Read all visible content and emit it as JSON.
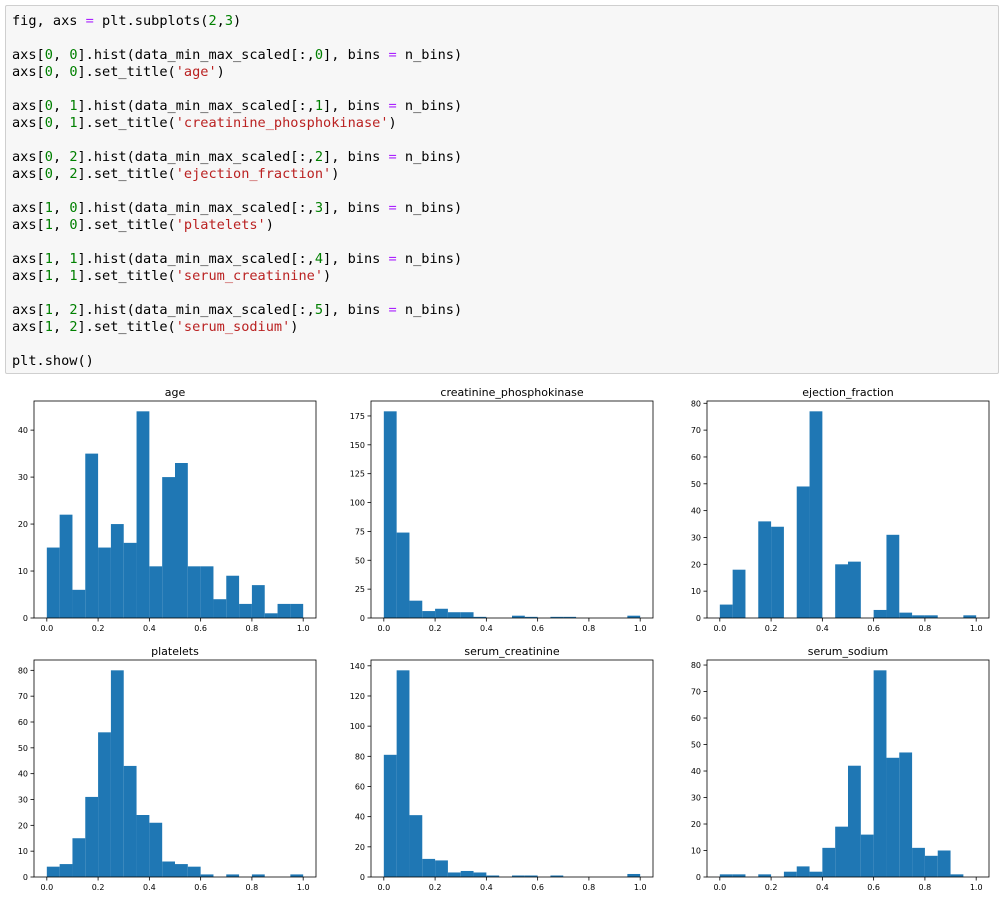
{
  "code": {
    "lines": [
      [
        {
          "t": "fig, axs ",
          "c": "kw"
        },
        {
          "t": "=",
          "c": "op"
        },
        {
          "t": " plt.subplots(",
          "c": "kw"
        },
        {
          "t": "2",
          "c": "num"
        },
        {
          "t": ",",
          "c": "kw"
        },
        {
          "t": "3",
          "c": "num"
        },
        {
          "t": ")",
          "c": "kw"
        }
      ],
      [],
      [
        {
          "t": "axs[",
          "c": "kw"
        },
        {
          "t": "0",
          "c": "num"
        },
        {
          "t": ", ",
          "c": "kw"
        },
        {
          "t": "0",
          "c": "num"
        },
        {
          "t": "].hist(data_min_max_scaled[:,",
          "c": "kw"
        },
        {
          "t": "0",
          "c": "num"
        },
        {
          "t": "], bins ",
          "c": "kw"
        },
        {
          "t": "=",
          "c": "op"
        },
        {
          "t": " n_bins)",
          "c": "kw"
        }
      ],
      [
        {
          "t": "axs[",
          "c": "kw"
        },
        {
          "t": "0",
          "c": "num"
        },
        {
          "t": ", ",
          "c": "kw"
        },
        {
          "t": "0",
          "c": "num"
        },
        {
          "t": "].set_title(",
          "c": "kw"
        },
        {
          "t": "'age'",
          "c": "str"
        },
        {
          "t": ")",
          "c": "kw"
        }
      ],
      [],
      [
        {
          "t": "axs[",
          "c": "kw"
        },
        {
          "t": "0",
          "c": "num"
        },
        {
          "t": ", ",
          "c": "kw"
        },
        {
          "t": "1",
          "c": "num"
        },
        {
          "t": "].hist(data_min_max_scaled[:,",
          "c": "kw"
        },
        {
          "t": "1",
          "c": "num"
        },
        {
          "t": "], bins ",
          "c": "kw"
        },
        {
          "t": "=",
          "c": "op"
        },
        {
          "t": " n_bins)",
          "c": "kw"
        }
      ],
      [
        {
          "t": "axs[",
          "c": "kw"
        },
        {
          "t": "0",
          "c": "num"
        },
        {
          "t": ", ",
          "c": "kw"
        },
        {
          "t": "1",
          "c": "num"
        },
        {
          "t": "].set_title(",
          "c": "kw"
        },
        {
          "t": "'creatinine_phosphokinase'",
          "c": "str"
        },
        {
          "t": ")",
          "c": "kw"
        }
      ],
      [],
      [
        {
          "t": "axs[",
          "c": "kw"
        },
        {
          "t": "0",
          "c": "num"
        },
        {
          "t": ", ",
          "c": "kw"
        },
        {
          "t": "2",
          "c": "num"
        },
        {
          "t": "].hist(data_min_max_scaled[:,",
          "c": "kw"
        },
        {
          "t": "2",
          "c": "num"
        },
        {
          "t": "], bins ",
          "c": "kw"
        },
        {
          "t": "=",
          "c": "op"
        },
        {
          "t": " n_bins)",
          "c": "kw"
        }
      ],
      [
        {
          "t": "axs[",
          "c": "kw"
        },
        {
          "t": "0",
          "c": "num"
        },
        {
          "t": ", ",
          "c": "kw"
        },
        {
          "t": "2",
          "c": "num"
        },
        {
          "t": "].set_title(",
          "c": "kw"
        },
        {
          "t": "'ejection_fraction'",
          "c": "str"
        },
        {
          "t": ")",
          "c": "kw"
        }
      ],
      [],
      [
        {
          "t": "axs[",
          "c": "kw"
        },
        {
          "t": "1",
          "c": "num"
        },
        {
          "t": ", ",
          "c": "kw"
        },
        {
          "t": "0",
          "c": "num"
        },
        {
          "t": "].hist(data_min_max_scaled[:,",
          "c": "kw"
        },
        {
          "t": "3",
          "c": "num"
        },
        {
          "t": "], bins ",
          "c": "kw"
        },
        {
          "t": "=",
          "c": "op"
        },
        {
          "t": " n_bins)",
          "c": "kw"
        }
      ],
      [
        {
          "t": "axs[",
          "c": "kw"
        },
        {
          "t": "1",
          "c": "num"
        },
        {
          "t": ", ",
          "c": "kw"
        },
        {
          "t": "0",
          "c": "num"
        },
        {
          "t": "].set_title(",
          "c": "kw"
        },
        {
          "t": "'platelets'",
          "c": "str"
        },
        {
          "t": ")",
          "c": "kw"
        }
      ],
      [],
      [
        {
          "t": "axs[",
          "c": "kw"
        },
        {
          "t": "1",
          "c": "num"
        },
        {
          "t": ", ",
          "c": "kw"
        },
        {
          "t": "1",
          "c": "num"
        },
        {
          "t": "].hist(data_min_max_scaled[:,",
          "c": "kw"
        },
        {
          "t": "4",
          "c": "num"
        },
        {
          "t": "], bins ",
          "c": "kw"
        },
        {
          "t": "=",
          "c": "op"
        },
        {
          "t": " n_bins)",
          "c": "kw"
        }
      ],
      [
        {
          "t": "axs[",
          "c": "kw"
        },
        {
          "t": "1",
          "c": "num"
        },
        {
          "t": ", ",
          "c": "kw"
        },
        {
          "t": "1",
          "c": "num"
        },
        {
          "t": "].set_title(",
          "c": "kw"
        },
        {
          "t": "'serum_creatinine'",
          "c": "str"
        },
        {
          "t": ")",
          "c": "kw"
        }
      ],
      [],
      [
        {
          "t": "axs[",
          "c": "kw"
        },
        {
          "t": "1",
          "c": "num"
        },
        {
          "t": ", ",
          "c": "kw"
        },
        {
          "t": "2",
          "c": "num"
        },
        {
          "t": "].hist(data_min_max_scaled[:,",
          "c": "kw"
        },
        {
          "t": "5",
          "c": "num"
        },
        {
          "t": "], bins ",
          "c": "kw"
        },
        {
          "t": "=",
          "c": "op"
        },
        {
          "t": " n_bins)",
          "c": "kw"
        }
      ],
      [
        {
          "t": "axs[",
          "c": "kw"
        },
        {
          "t": "1",
          "c": "num"
        },
        {
          "t": ", ",
          "c": "kw"
        },
        {
          "t": "2",
          "c": "num"
        },
        {
          "t": "].set_title(",
          "c": "kw"
        },
        {
          "t": "'serum_sodium'",
          "c": "str"
        },
        {
          "t": ")",
          "c": "kw"
        }
      ],
      [],
      [
        {
          "t": "plt.show()",
          "c": "kw"
        }
      ]
    ]
  },
  "colors": {
    "bar": "#1f77b4",
    "axes": "#000000",
    "background": "#ffffff"
  },
  "chart_data": [
    {
      "type": "bar",
      "title": "age",
      "xlim": [
        -0.05,
        1.05
      ],
      "ylim": [
        0,
        46.2
      ],
      "xticks": [
        0.0,
        0.2,
        0.4,
        0.6,
        0.8,
        1.0
      ],
      "xtick_labels": [
        "0.0",
        "0.2",
        "0.4",
        "0.6",
        "0.8",
        "1.0"
      ],
      "yticks": [
        0,
        10,
        20,
        30,
        40
      ],
      "ytick_labels": [
        "0",
        "10",
        "20",
        "30",
        "40"
      ],
      "bin_edges": [
        0.0,
        0.05,
        0.1,
        0.15,
        0.2,
        0.25,
        0.3,
        0.35,
        0.4,
        0.45,
        0.5,
        0.55,
        0.6,
        0.65,
        0.7,
        0.75,
        0.8,
        0.85,
        0.9,
        0.95,
        1.0
      ],
      "values": [
        15,
        22,
        6,
        35,
        15,
        20,
        16,
        44,
        11,
        30,
        33,
        11,
        11,
        4,
        9,
        3,
        7,
        1,
        3,
        3
      ]
    },
    {
      "type": "bar",
      "title": "creatinine_phosphokinase",
      "xlim": [
        -0.05,
        1.05
      ],
      "ylim": [
        0,
        187.95
      ],
      "xticks": [
        0.0,
        0.2,
        0.4,
        0.6,
        0.8,
        1.0
      ],
      "xtick_labels": [
        "0.0",
        "0.2",
        "0.4",
        "0.6",
        "0.8",
        "1.0"
      ],
      "yticks": [
        0,
        25,
        50,
        75,
        100,
        125,
        150,
        175
      ],
      "ytick_labels": [
        "0",
        "25",
        "50",
        "75",
        "100",
        "125",
        "150",
        "175"
      ],
      "bin_edges": [
        0.0,
        0.05,
        0.1,
        0.15,
        0.2,
        0.25,
        0.3,
        0.35,
        0.4,
        0.45,
        0.5,
        0.55,
        0.6,
        0.65,
        0.7,
        0.75,
        0.8,
        0.85,
        0.9,
        0.95,
        1.0
      ],
      "values": [
        179,
        74,
        15,
        6,
        8,
        5,
        5,
        1,
        0,
        0,
        2,
        1,
        0,
        1,
        1,
        0,
        0,
        0,
        0,
        2
      ]
    },
    {
      "type": "bar",
      "title": "ejection_fraction",
      "xlim": [
        -0.05,
        1.05
      ],
      "ylim": [
        0,
        80.85
      ],
      "xticks": [
        0.0,
        0.2,
        0.4,
        0.6,
        0.8,
        1.0
      ],
      "xtick_labels": [
        "0.0",
        "0.2",
        "0.4",
        "0.6",
        "0.8",
        "1.0"
      ],
      "yticks": [
        0,
        10,
        20,
        30,
        40,
        50,
        60,
        70,
        80
      ],
      "ytick_labels": [
        "0",
        "10",
        "20",
        "30",
        "40",
        "50",
        "60",
        "70",
        "80"
      ],
      "bin_edges": [
        0.0,
        0.05,
        0.1,
        0.15,
        0.2,
        0.25,
        0.3,
        0.35,
        0.4,
        0.45,
        0.5,
        0.55,
        0.6,
        0.65,
        0.7,
        0.75,
        0.8,
        0.85,
        0.9,
        0.95,
        1.0
      ],
      "values": [
        5,
        18,
        0,
        36,
        34,
        0,
        49,
        77,
        0,
        20,
        21,
        0,
        3,
        31,
        2,
        1,
        1,
        0,
        0,
        1
      ]
    },
    {
      "type": "bar",
      "title": "platelets",
      "xlim": [
        -0.05,
        1.05
      ],
      "ylim": [
        0,
        84
      ],
      "xticks": [
        0.0,
        0.2,
        0.4,
        0.6,
        0.8,
        1.0
      ],
      "xtick_labels": [
        "0.0",
        "0.2",
        "0.4",
        "0.6",
        "0.8",
        "1.0"
      ],
      "yticks": [
        0,
        10,
        20,
        30,
        40,
        50,
        60,
        70,
        80
      ],
      "ytick_labels": [
        "0",
        "10",
        "20",
        "30",
        "40",
        "50",
        "60",
        "70",
        "80"
      ],
      "bin_edges": [
        0.0,
        0.05,
        0.1,
        0.15,
        0.2,
        0.25,
        0.3,
        0.35,
        0.4,
        0.45,
        0.5,
        0.55,
        0.6,
        0.65,
        0.7,
        0.75,
        0.8,
        0.85,
        0.9,
        0.95,
        1.0
      ],
      "values": [
        4,
        5,
        15,
        31,
        56,
        80,
        43,
        24,
        21,
        6,
        5,
        4,
        1,
        0,
        1,
        0,
        1,
        0,
        0,
        1
      ]
    },
    {
      "type": "bar",
      "title": "serum_creatinine",
      "xlim": [
        -0.05,
        1.05
      ],
      "ylim": [
        0,
        143.85
      ],
      "xticks": [
        0.0,
        0.2,
        0.4,
        0.6,
        0.8,
        1.0
      ],
      "xtick_labels": [
        "0.0",
        "0.2",
        "0.4",
        "0.6",
        "0.8",
        "1.0"
      ],
      "yticks": [
        0,
        20,
        40,
        60,
        80,
        100,
        120,
        140
      ],
      "ytick_labels": [
        "0",
        "20",
        "40",
        "60",
        "80",
        "100",
        "120",
        "140"
      ],
      "bin_edges": [
        0.0,
        0.05,
        0.1,
        0.15,
        0.2,
        0.25,
        0.3,
        0.35,
        0.4,
        0.45,
        0.5,
        0.55,
        0.6,
        0.65,
        0.7,
        0.75,
        0.8,
        0.85,
        0.9,
        0.95,
        1.0
      ],
      "values": [
        81,
        137,
        41,
        12,
        11,
        3,
        4,
        3,
        1,
        0,
        1,
        1,
        0,
        1,
        0,
        0,
        0,
        0,
        0,
        2
      ]
    },
    {
      "type": "bar",
      "title": "serum_sodium",
      "xlim": [
        -0.05,
        1.05
      ],
      "ylim": [
        0,
        81.9
      ],
      "xticks": [
        0.0,
        0.2,
        0.4,
        0.6,
        0.8,
        1.0
      ],
      "xtick_labels": [
        "0.0",
        "0.2",
        "0.4",
        "0.6",
        "0.8",
        "1.0"
      ],
      "yticks": [
        0,
        10,
        20,
        30,
        40,
        50,
        60,
        70,
        80
      ],
      "ytick_labels": [
        "0",
        "10",
        "20",
        "30",
        "40",
        "50",
        "60",
        "70",
        "80"
      ],
      "bin_edges": [
        0.0,
        0.05,
        0.1,
        0.15,
        0.2,
        0.25,
        0.3,
        0.35,
        0.4,
        0.45,
        0.5,
        0.55,
        0.6,
        0.65,
        0.7,
        0.75,
        0.8,
        0.85,
        0.9,
        0.95,
        1.0
      ],
      "values": [
        1,
        1,
        0,
        1,
        0,
        2,
        4,
        2,
        11,
        19,
        42,
        16,
        78,
        45,
        47,
        11,
        8,
        10,
        1,
        0
      ]
    }
  ]
}
